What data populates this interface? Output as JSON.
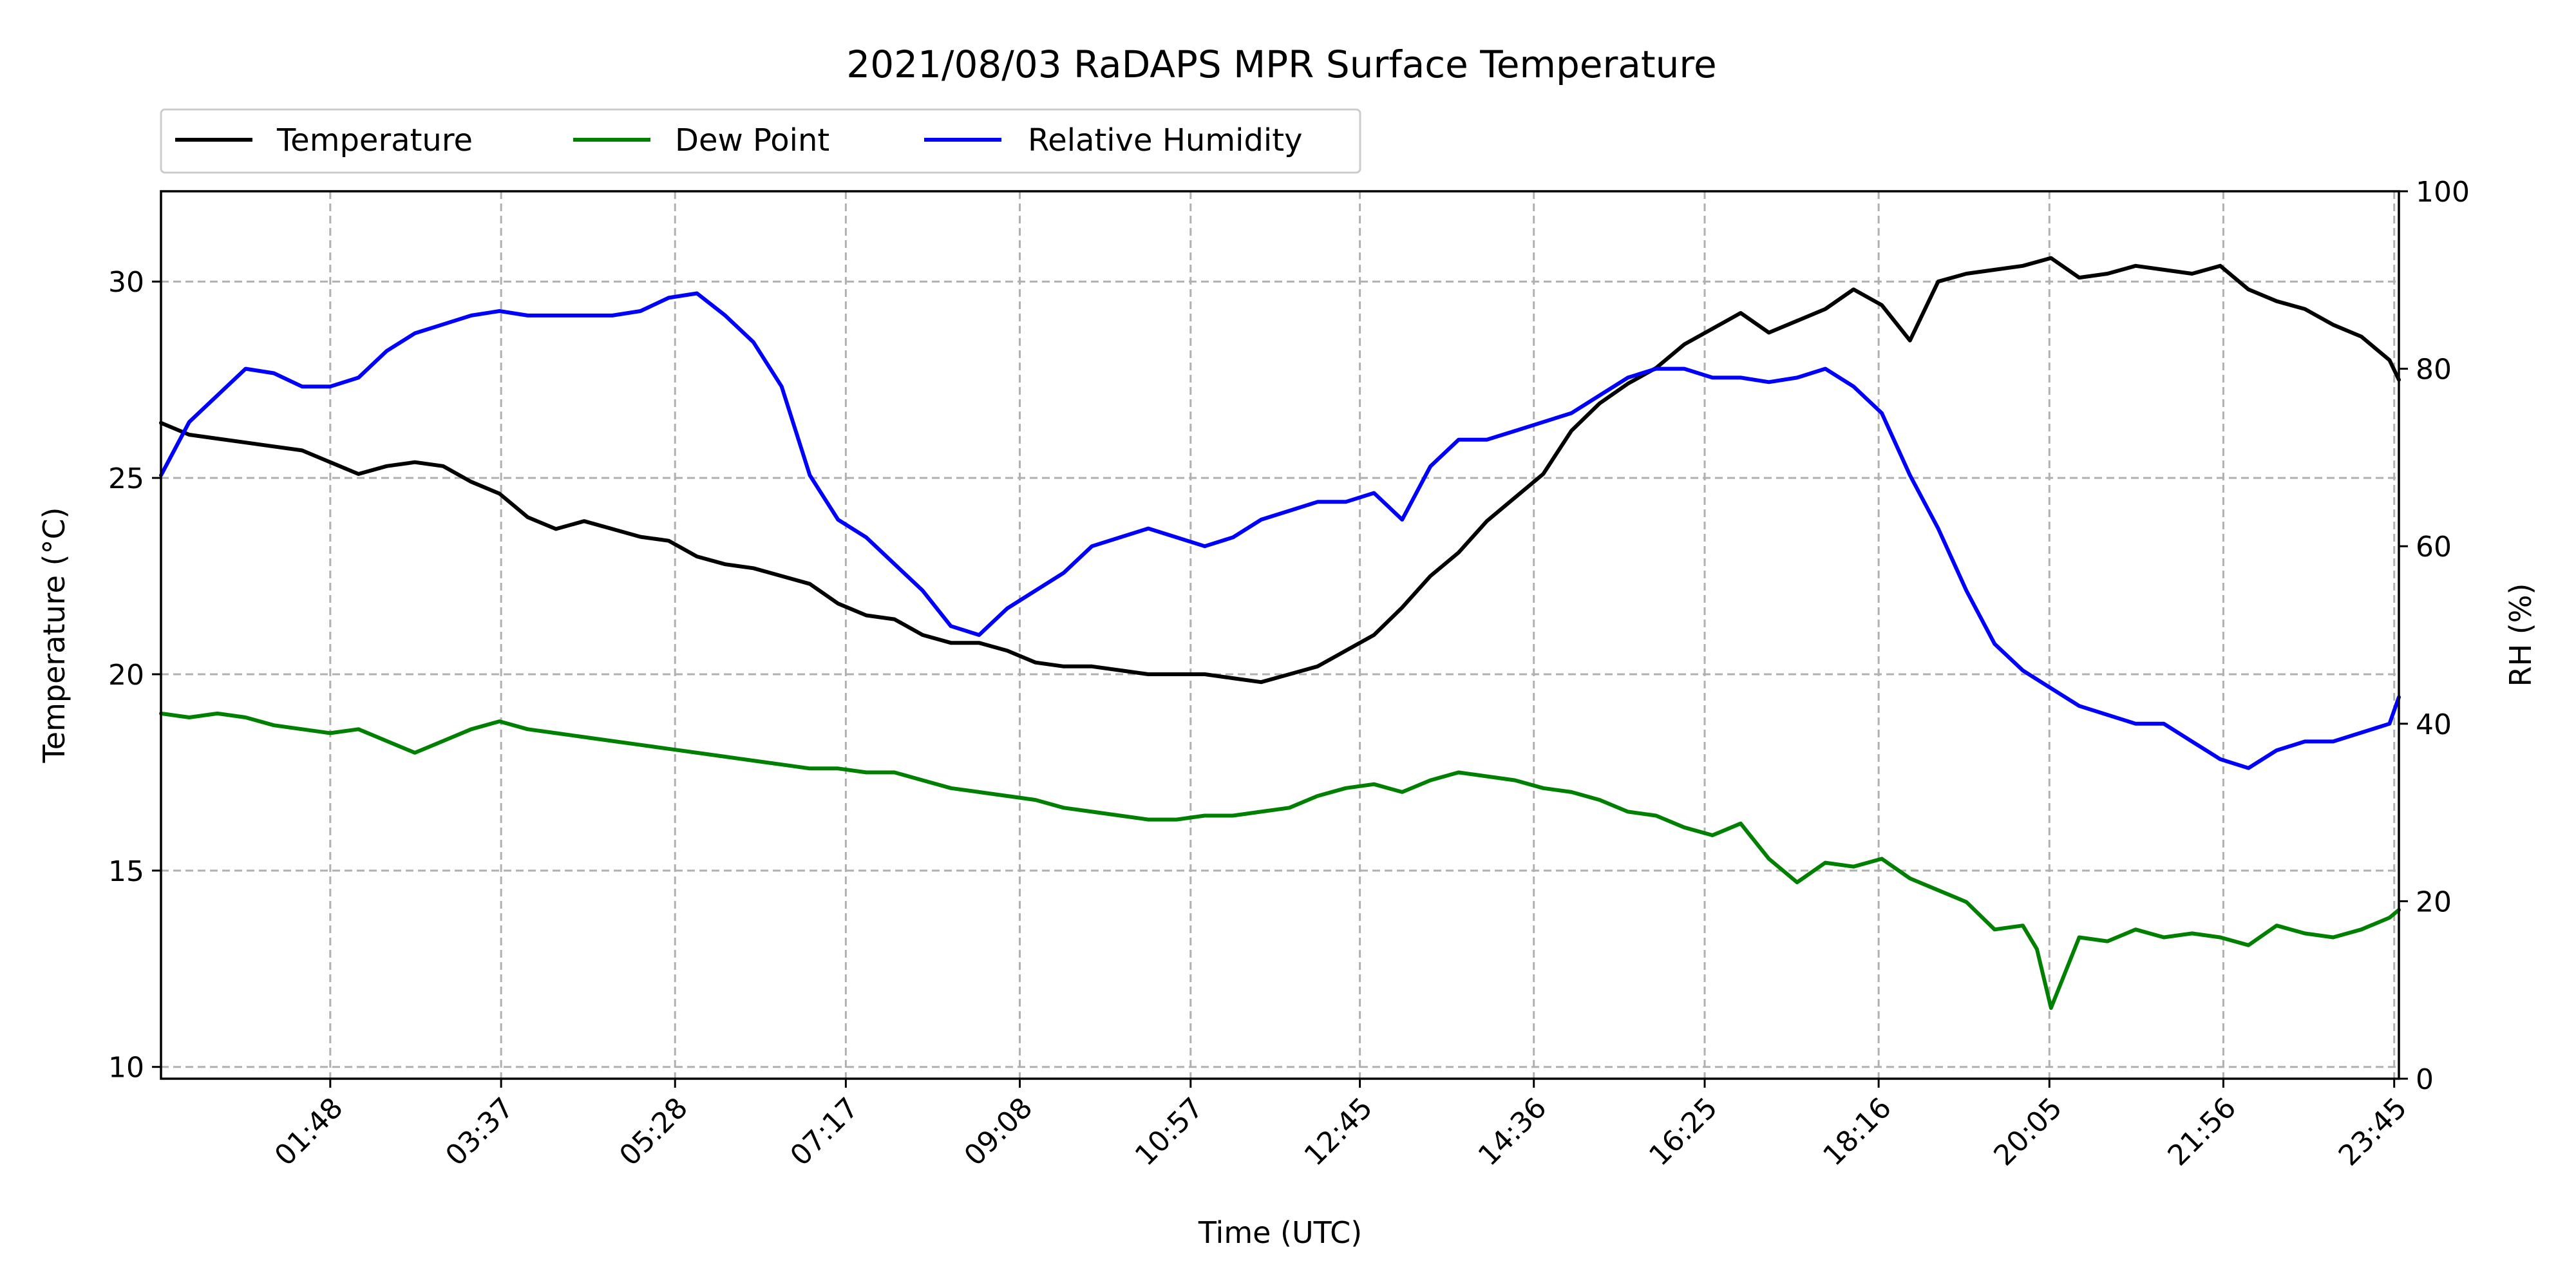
{
  "chart_data": {
    "type": "line",
    "title": "2021/08/03 RaDAPS MPR Surface Temperature",
    "xlabel": "Time (UTC)",
    "ylabel": "Temperature ($^\\circ$C)",
    "ylabel_display": "Temperature (°C)",
    "y2label": "RH (%)",
    "xlim": [
      0.0,
      23.8
    ],
    "ylim": [
      9.7,
      32.3
    ],
    "y2lim": [
      0,
      100
    ],
    "x_ticks": [
      1.8,
      3.617,
      5.467,
      7.283,
      9.133,
      10.95,
      12.75,
      14.6,
      16.417,
      18.267,
      20.083,
      21.933,
      23.75
    ],
    "x_tick_labels": [
      "01:48",
      "03:37",
      "05:28",
      "07:17",
      "09:08",
      "10:57",
      "12:45",
      "14:36",
      "16:25",
      "18:16",
      "20:05",
      "21:56",
      "23:45"
    ],
    "y_ticks": [
      10,
      15,
      20,
      25,
      30
    ],
    "y2_ticks": [
      0,
      20,
      40,
      60,
      80,
      100
    ],
    "grid": true,
    "legend_position": "top-left, above plot",
    "series": [
      {
        "name": "Temperature",
        "axis": "left",
        "color": "#000000",
        "x": [
          0.0,
          0.3,
          0.6,
          0.9,
          1.2,
          1.5,
          1.8,
          2.1,
          2.4,
          2.7,
          3.0,
          3.3,
          3.6,
          3.9,
          4.2,
          4.5,
          4.8,
          5.1,
          5.4,
          5.7,
          6.0,
          6.3,
          6.6,
          6.9,
          7.2,
          7.5,
          7.8,
          8.1,
          8.4,
          8.7,
          9.0,
          9.3,
          9.6,
          9.9,
          10.2,
          10.5,
          10.8,
          11.1,
          11.4,
          11.7,
          12.0,
          12.3,
          12.6,
          12.9,
          13.2,
          13.5,
          13.8,
          14.1,
          14.4,
          14.7,
          15.0,
          15.3,
          15.6,
          15.9,
          16.2,
          16.5,
          16.8,
          17.1,
          17.4,
          17.7,
          18.0,
          18.3,
          18.6,
          18.9,
          19.2,
          19.5,
          19.8,
          20.1,
          20.4,
          20.7,
          21.0,
          21.3,
          21.6,
          21.9,
          22.2,
          22.5,
          22.8,
          23.1,
          23.4,
          23.7,
          23.8
        ],
        "y": [
          26.4,
          26.1,
          26.0,
          25.9,
          25.8,
          25.7,
          25.4,
          25.1,
          25.3,
          25.4,
          25.3,
          24.9,
          24.6,
          24.0,
          23.7,
          23.9,
          23.7,
          23.5,
          23.4,
          23.0,
          22.8,
          22.7,
          22.5,
          22.3,
          21.8,
          21.5,
          21.4,
          21.0,
          20.8,
          20.8,
          20.6,
          20.3,
          20.2,
          20.2,
          20.1,
          20.0,
          20.0,
          20.0,
          19.9,
          19.8,
          20.0,
          20.2,
          20.6,
          21.0,
          21.7,
          22.5,
          23.1,
          23.9,
          24.5,
          25.1,
          26.2,
          26.9,
          27.4,
          27.8,
          28.4,
          28.8,
          29.2,
          28.7,
          29.0,
          29.3,
          29.8,
          29.4,
          28.5,
          30.0,
          30.2,
          30.3,
          30.4,
          30.6,
          30.1,
          30.2,
          30.4,
          30.3,
          30.2,
          30.4,
          29.8,
          29.5,
          29.3,
          28.9,
          28.6,
          28.0,
          27.5
        ]
      },
      {
        "name": "Dew Point",
        "axis": "left",
        "color": "#008000",
        "x": [
          0.0,
          0.3,
          0.6,
          0.9,
          1.2,
          1.5,
          1.8,
          2.1,
          2.4,
          2.7,
          3.0,
          3.3,
          3.6,
          3.9,
          4.2,
          4.5,
          4.8,
          5.1,
          5.4,
          5.7,
          6.0,
          6.3,
          6.6,
          6.9,
          7.2,
          7.5,
          7.8,
          8.1,
          8.4,
          8.7,
          9.0,
          9.3,
          9.6,
          9.9,
          10.2,
          10.5,
          10.8,
          11.1,
          11.4,
          11.7,
          12.0,
          12.3,
          12.6,
          12.9,
          13.2,
          13.5,
          13.8,
          14.1,
          14.4,
          14.7,
          15.0,
          15.3,
          15.6,
          15.9,
          16.2,
          16.5,
          16.8,
          17.1,
          17.4,
          17.7,
          18.0,
          18.3,
          18.6,
          18.9,
          19.2,
          19.5,
          19.8,
          19.95,
          20.1,
          20.4,
          20.7,
          21.0,
          21.3,
          21.6,
          21.9,
          22.2,
          22.5,
          22.8,
          23.1,
          23.4,
          23.7,
          23.8
        ],
        "y": [
          19.0,
          18.9,
          19.0,
          18.9,
          18.7,
          18.6,
          18.5,
          18.6,
          18.3,
          18.0,
          18.3,
          18.6,
          18.8,
          18.6,
          18.5,
          18.4,
          18.3,
          18.2,
          18.1,
          18.0,
          17.9,
          17.8,
          17.7,
          17.6,
          17.6,
          17.5,
          17.5,
          17.3,
          17.1,
          17.0,
          16.9,
          16.8,
          16.6,
          16.5,
          16.4,
          16.3,
          16.3,
          16.4,
          16.4,
          16.5,
          16.6,
          16.9,
          17.1,
          17.2,
          17.0,
          17.3,
          17.5,
          17.4,
          17.3,
          17.1,
          17.0,
          16.8,
          16.5,
          16.4,
          16.1,
          15.9,
          16.2,
          15.3,
          14.7,
          15.2,
          15.1,
          15.3,
          14.8,
          14.5,
          14.2,
          13.5,
          13.6,
          13.0,
          11.5,
          13.3,
          13.2,
          13.5,
          13.3,
          13.4,
          13.3,
          13.1,
          13.6,
          13.4,
          13.3,
          13.5,
          13.8,
          14.0
        ]
      },
      {
        "name": "Relative Humidity",
        "axis": "right",
        "color": "#0000ff",
        "x": [
          0.0,
          0.3,
          0.6,
          0.9,
          1.2,
          1.5,
          1.8,
          2.1,
          2.4,
          2.7,
          3.0,
          3.3,
          3.6,
          3.9,
          4.2,
          4.5,
          4.8,
          5.1,
          5.4,
          5.7,
          6.0,
          6.3,
          6.6,
          6.9,
          7.2,
          7.5,
          7.8,
          8.1,
          8.4,
          8.7,
          9.0,
          9.3,
          9.6,
          9.9,
          10.2,
          10.5,
          10.8,
          11.1,
          11.4,
          11.7,
          12.0,
          12.3,
          12.6,
          12.9,
          13.2,
          13.5,
          13.8,
          14.1,
          14.4,
          14.7,
          15.0,
          15.3,
          15.6,
          15.9,
          16.2,
          16.5,
          16.8,
          17.1,
          17.4,
          17.7,
          18.0,
          18.3,
          18.6,
          18.9,
          19.2,
          19.5,
          19.8,
          20.1,
          20.4,
          20.7,
          21.0,
          21.3,
          21.6,
          21.9,
          22.2,
          22.5,
          22.8,
          23.1,
          23.4,
          23.7,
          23.8
        ],
        "y": [
          68,
          74,
          77,
          80,
          79.5,
          78,
          78,
          79,
          82,
          84,
          85,
          86,
          86.5,
          86,
          86,
          86,
          86,
          86.5,
          88,
          88.5,
          86,
          83,
          78,
          68,
          63,
          61,
          58,
          55,
          51,
          50,
          53,
          55,
          57,
          60,
          61,
          62,
          61,
          60,
          61,
          63,
          64,
          65,
          65,
          66,
          63,
          69,
          72,
          72,
          73,
          74,
          75,
          77,
          79,
          80,
          80,
          79,
          79,
          78.5,
          79,
          80,
          78,
          75,
          68,
          62,
          55,
          49,
          46,
          44,
          42,
          41,
          40,
          40,
          38,
          36,
          35,
          37,
          38,
          38,
          39,
          40,
          43
        ]
      }
    ]
  }
}
